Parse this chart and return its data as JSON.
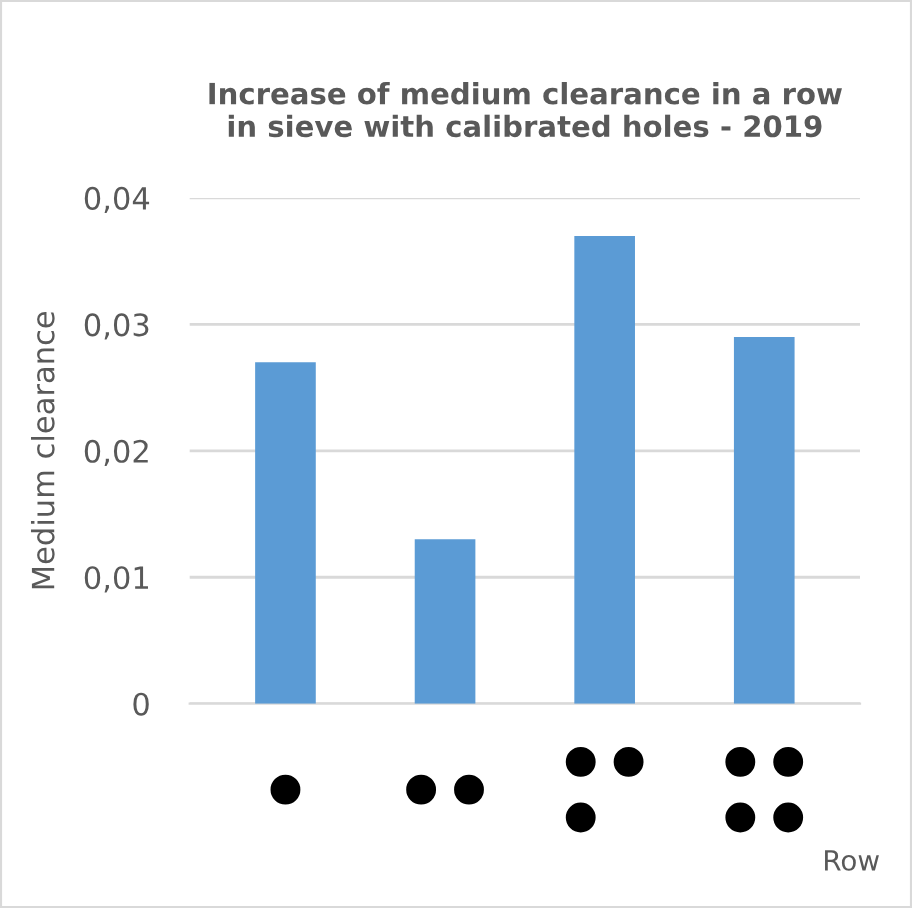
{
  "chart_data": {
    "type": "bar",
    "title": "Increase of medium clearance in a row\nin sieve with calibrated holes - 2019",
    "categories": [
      null,
      null,
      null,
      null
    ],
    "values": [
      0.027,
      0.013,
      0.037,
      0.029
    ],
    "color": "#5b9bd5",
    "ylabel": "Medium clearance",
    "xlabel": "Row",
    "ylim": [
      0,
      0.04
    ],
    "yticks": [
      0,
      {
        "value": 0.01,
        "label": "0,01"
      },
      {
        "value": 0.02,
        "label": "0,02"
      },
      {
        "value": 0.03,
        "label": "0,03"
      },
      {
        "value": 0.04,
        "label": "0,04"
      }
    ],
    "grid": "y",
    "legend": false
  }
}
